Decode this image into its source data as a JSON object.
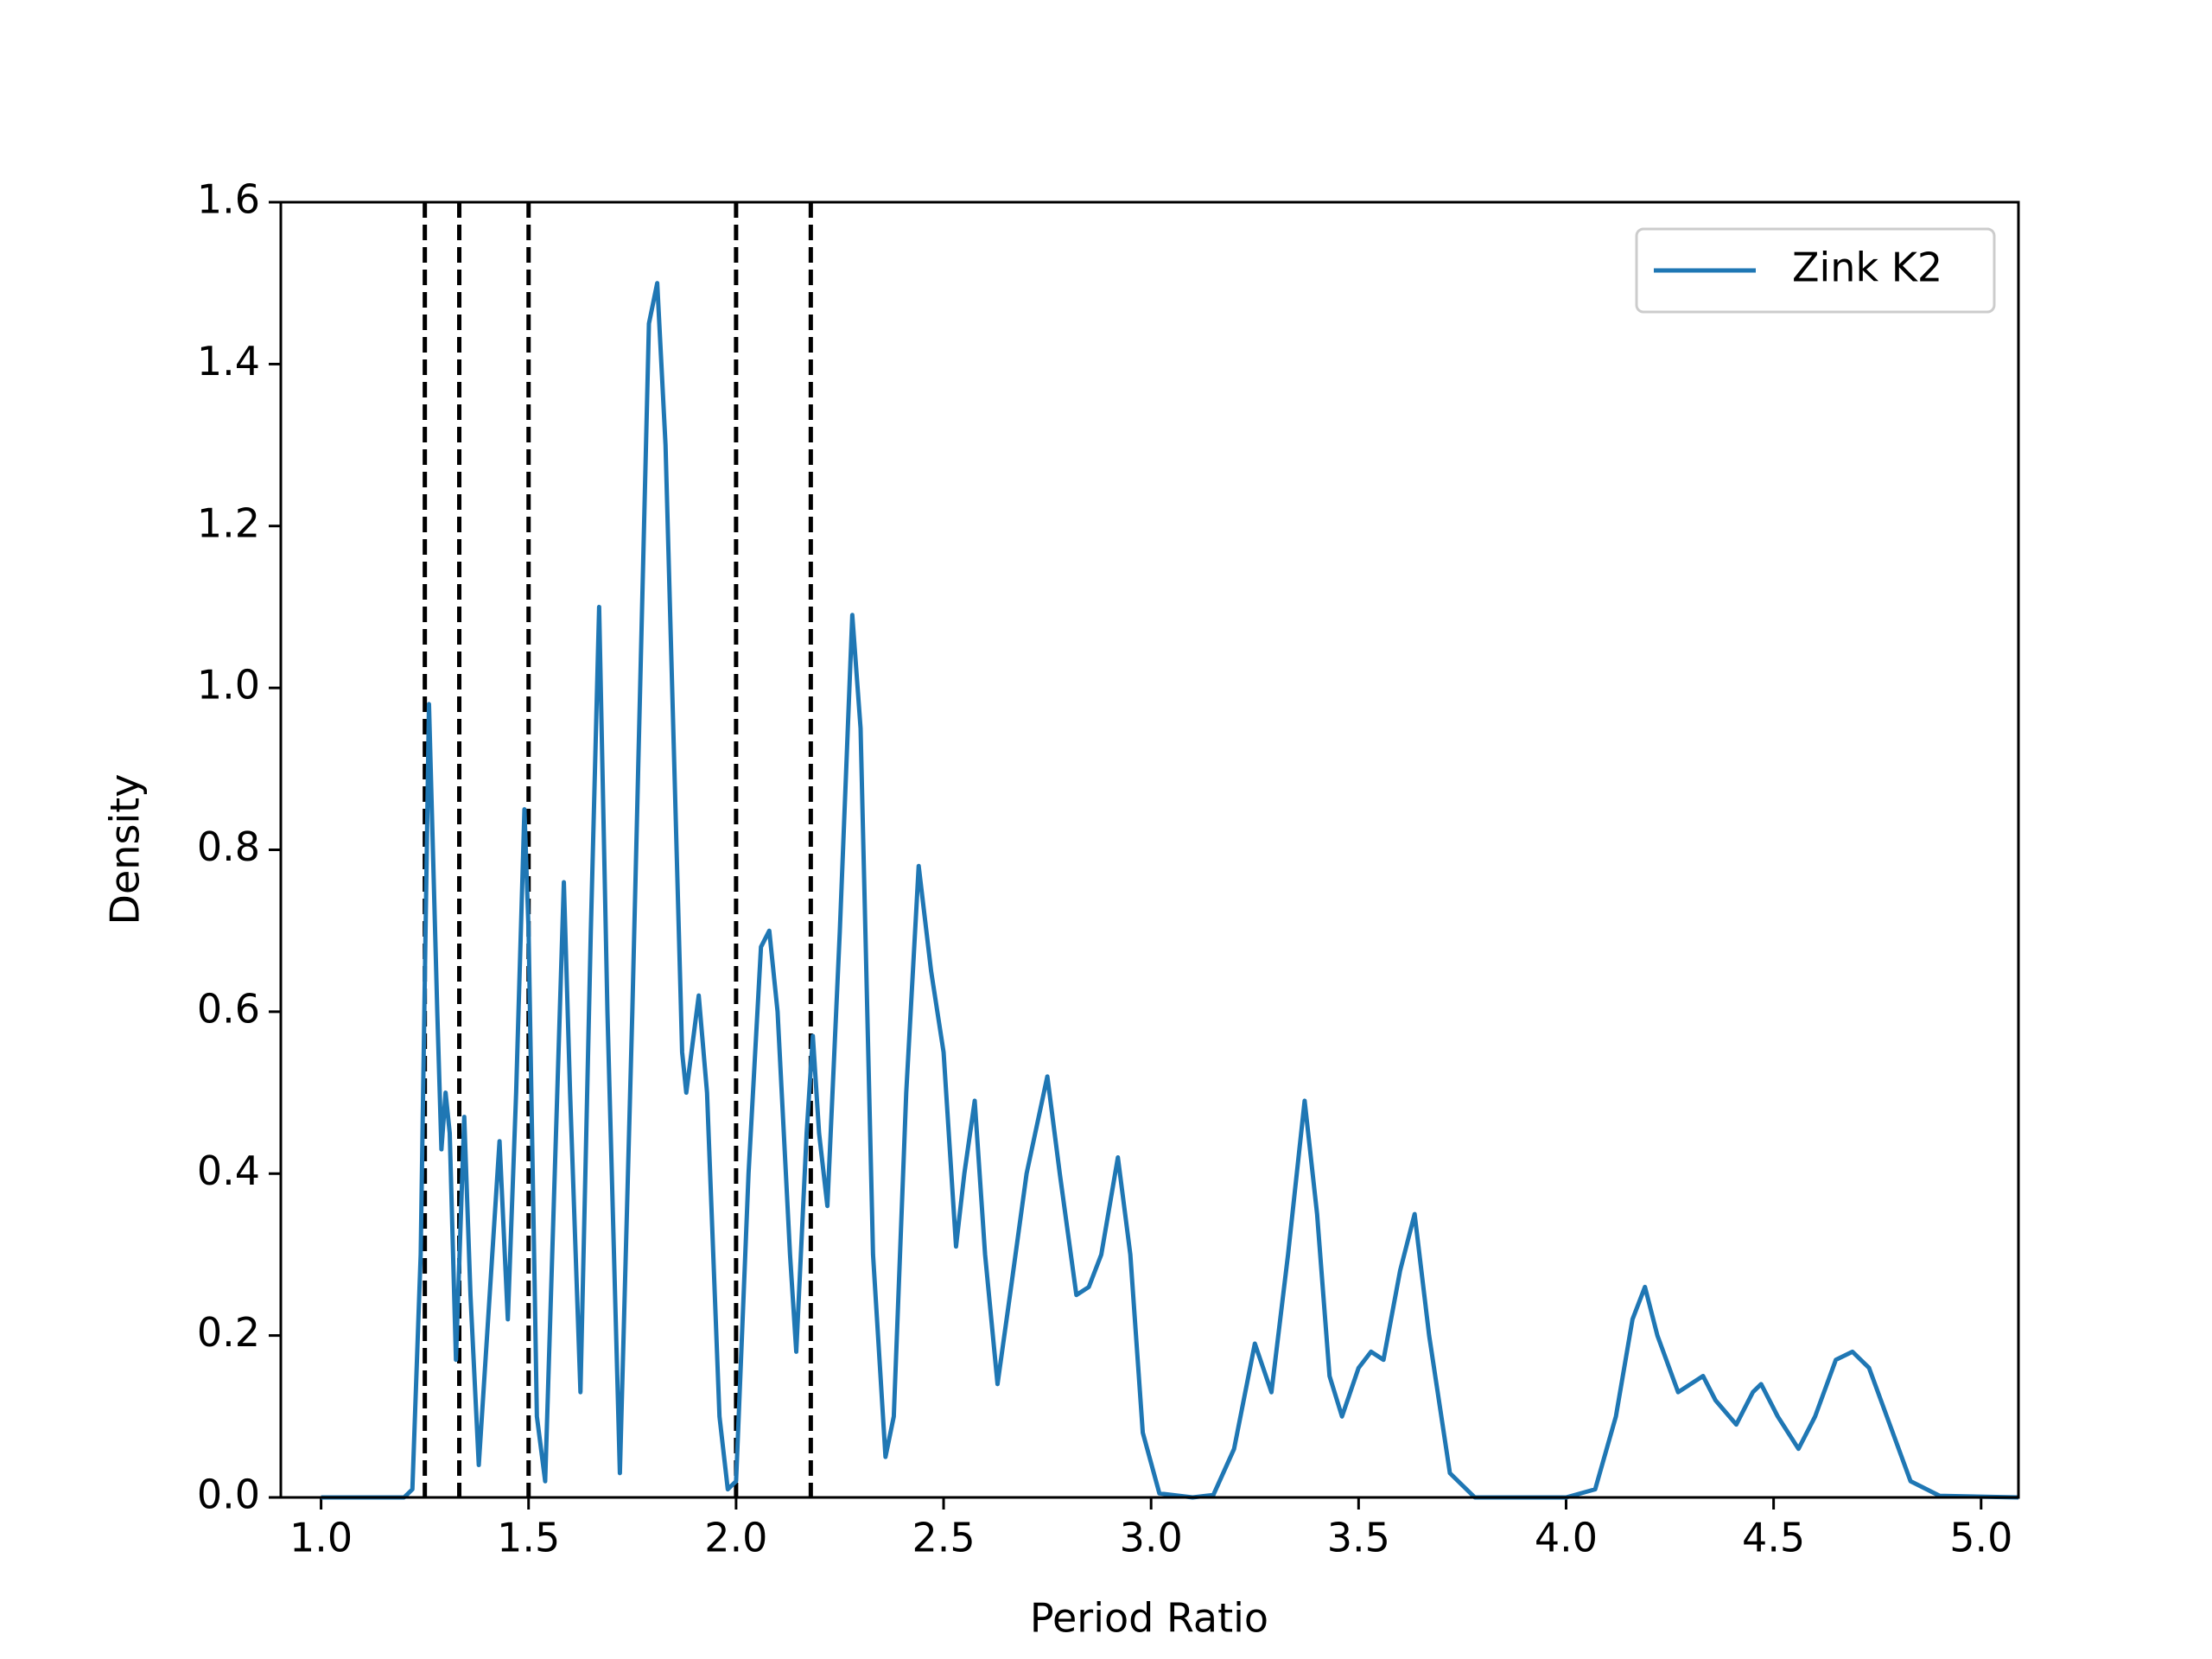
{
  "chart_data": {
    "type": "line",
    "xlabel": "Period Ratio",
    "ylabel": "Density",
    "x": [
      1.0,
      1.2,
      1.22,
      1.24,
      1.26,
      1.28,
      1.29,
      1.3,
      1.31,
      1.325,
      1.345,
      1.36,
      1.38,
      1.4,
      1.43,
      1.45,
      1.47,
      1.49,
      1.5,
      1.52,
      1.54,
      1.56,
      1.585,
      1.6,
      1.625,
      1.65,
      1.67,
      1.69,
      1.72,
      1.75,
      1.79,
      1.81,
      1.83,
      1.87,
      1.88,
      1.91,
      1.93,
      1.96,
      1.98,
      2.0,
      2.03,
      2.06,
      2.08,
      2.1,
      2.13,
      2.145,
      2.17,
      2.185,
      2.2,
      2.22,
      2.25,
      2.28,
      2.3,
      2.33,
      2.36,
      2.38,
      2.41,
      2.44,
      2.47,
      2.5,
      2.53,
      2.55,
      2.575,
      2.6,
      2.63,
      2.66,
      2.7,
      2.75,
      2.78,
      2.82,
      2.85,
      2.88,
      2.92,
      2.95,
      2.98,
      3.02,
      3.1,
      3.15,
      3.2,
      3.25,
      3.29,
      3.33,
      3.37,
      3.4,
      3.43,
      3.46,
      3.5,
      3.53,
      3.56,
      3.6,
      3.635,
      3.67,
      3.72,
      3.78,
      4.0,
      4.07,
      4.12,
      4.16,
      4.19,
      4.22,
      4.27,
      4.3,
      4.33,
      4.36,
      4.41,
      4.45,
      4.47,
      4.51,
      4.56,
      4.6,
      4.65,
      4.69,
      4.73,
      4.78,
      4.83,
      4.9,
      5.09
    ],
    "series": [
      {
        "name": "Zink K2",
        "color": "#1f77b4",
        "values": [
          0,
          0,
          0.01,
          0.3,
          0.98,
          0.6,
          0.43,
          0.5,
          0.45,
          0.17,
          0.47,
          0.25,
          0.04,
          0.2,
          0.44,
          0.22,
          0.5,
          0.85,
          0.7,
          0.1,
          0.02,
          0.35,
          0.76,
          0.5,
          0.13,
          0.7,
          1.1,
          0.6,
          0.03,
          0.6,
          1.45,
          1.5,
          1.3,
          0.55,
          0.5,
          0.62,
          0.5,
          0.1,
          0.01,
          0.02,
          0.4,
          0.68,
          0.7,
          0.6,
          0.3,
          0.18,
          0.45,
          0.57,
          0.45,
          0.36,
          0.7,
          1.09,
          0.95,
          0.3,
          0.05,
          0.1,
          0.5,
          0.78,
          0.65,
          0.55,
          0.31,
          0.4,
          0.49,
          0.3,
          0.14,
          0.25,
          0.4,
          0.52,
          0.4,
          0.25,
          0.26,
          0.3,
          0.42,
          0.3,
          0.08,
          0.005,
          0,
          0.003,
          0.06,
          0.19,
          0.13,
          0.3,
          0.49,
          0.35,
          0.15,
          0.1,
          0.16,
          0.18,
          0.17,
          0.28,
          0.35,
          0.2,
          0.03,
          0,
          0,
          0.01,
          0.1,
          0.22,
          0.26,
          0.2,
          0.13,
          0.14,
          0.15,
          0.12,
          0.09,
          0.13,
          0.14,
          0.1,
          0.06,
          0.1,
          0.17,
          0.18,
          0.16,
          0.09,
          0.02,
          0.002,
          0
        ]
      }
    ],
    "vlines": [
      1.25,
      1.333,
      1.5,
      2.0,
      2.18
    ],
    "xlim": [
      0.903,
      5.09
    ],
    "ylim": [
      0,
      1.6
    ],
    "xticks": [
      {
        "value": 1,
        "label": "1.0"
      },
      1.5,
      {
        "value": 2,
        "label": "2.0"
      },
      2.5,
      {
        "value": 3,
        "label": "3.0"
      },
      3.5,
      {
        "value": 4,
        "label": "4.0"
      },
      4.5,
      {
        "value": 5,
        "label": "5.0"
      }
    ],
    "yticks": [
      {
        "value": 0,
        "label": "0.0"
      },
      0.2,
      0.4,
      0.6,
      0.8,
      {
        "value": 1,
        "label": "1.0"
      },
      1.2,
      1.4,
      1.6
    ],
    "legend": "upper right"
  }
}
